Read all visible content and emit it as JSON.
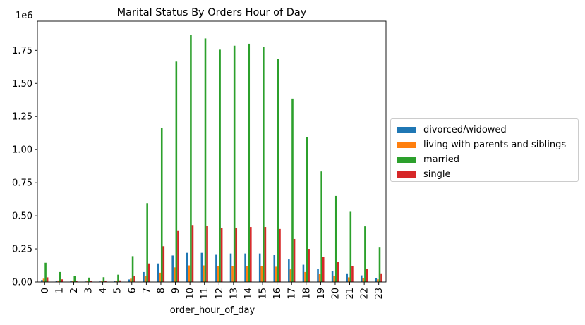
{
  "chart_data": {
    "type": "bar",
    "title": "Marital Status By Orders Hour of Day",
    "xlabel": "order_hour_of_day",
    "ylabel": "",
    "y_scale_label": "1e6",
    "ylim": [
      0,
      1.97
    ],
    "yticks": [
      "0.00",
      "0.25",
      "0.50",
      "0.75",
      "1.00",
      "1.25",
      "1.50",
      "1.75"
    ],
    "categories": [
      "0",
      "1",
      "2",
      "3",
      "4",
      "5",
      "6",
      "7",
      "8",
      "9",
      "10",
      "11",
      "12",
      "13",
      "14",
      "15",
      "16",
      "17",
      "18",
      "19",
      "20",
      "21",
      "22",
      "23"
    ],
    "legend_position": "center-right outside",
    "grid": false,
    "series": [
      {
        "name": "divorced/widowed",
        "color": "#1f77b4",
        "values": [
          0.015,
          0.009,
          0.005,
          0.004,
          0.004,
          0.006,
          0.019,
          0.075,
          0.14,
          0.2,
          0.22,
          0.22,
          0.21,
          0.215,
          0.215,
          0.215,
          0.205,
          0.17,
          0.13,
          0.1,
          0.08,
          0.065,
          0.05,
          0.03
        ]
      },
      {
        "name": "living with parents and siblings",
        "color": "#ff7f0e",
        "values": [
          0.025,
          0.011,
          0.006,
          0.005,
          0.005,
          0.007,
          0.025,
          0.045,
          0.07,
          0.11,
          0.125,
          0.125,
          0.12,
          0.12,
          0.12,
          0.12,
          0.115,
          0.095,
          0.075,
          0.06,
          0.045,
          0.035,
          0.03,
          0.02
        ]
      },
      {
        "name": "married",
        "color": "#2ca02c",
        "values": [
          0.145,
          0.075,
          0.045,
          0.033,
          0.036,
          0.055,
          0.195,
          0.595,
          1.165,
          1.665,
          1.865,
          1.84,
          1.755,
          1.785,
          1.8,
          1.775,
          1.685,
          1.385,
          1.095,
          0.835,
          0.65,
          0.53,
          0.42,
          0.26
        ]
      },
      {
        "name": "single",
        "color": "#d62728",
        "values": [
          0.035,
          0.02,
          0.01,
          0.008,
          0.008,
          0.012,
          0.045,
          0.14,
          0.27,
          0.39,
          0.43,
          0.425,
          0.405,
          0.41,
          0.415,
          0.415,
          0.4,
          0.325,
          0.25,
          0.19,
          0.15,
          0.12,
          0.1,
          0.065
        ]
      }
    ]
  }
}
